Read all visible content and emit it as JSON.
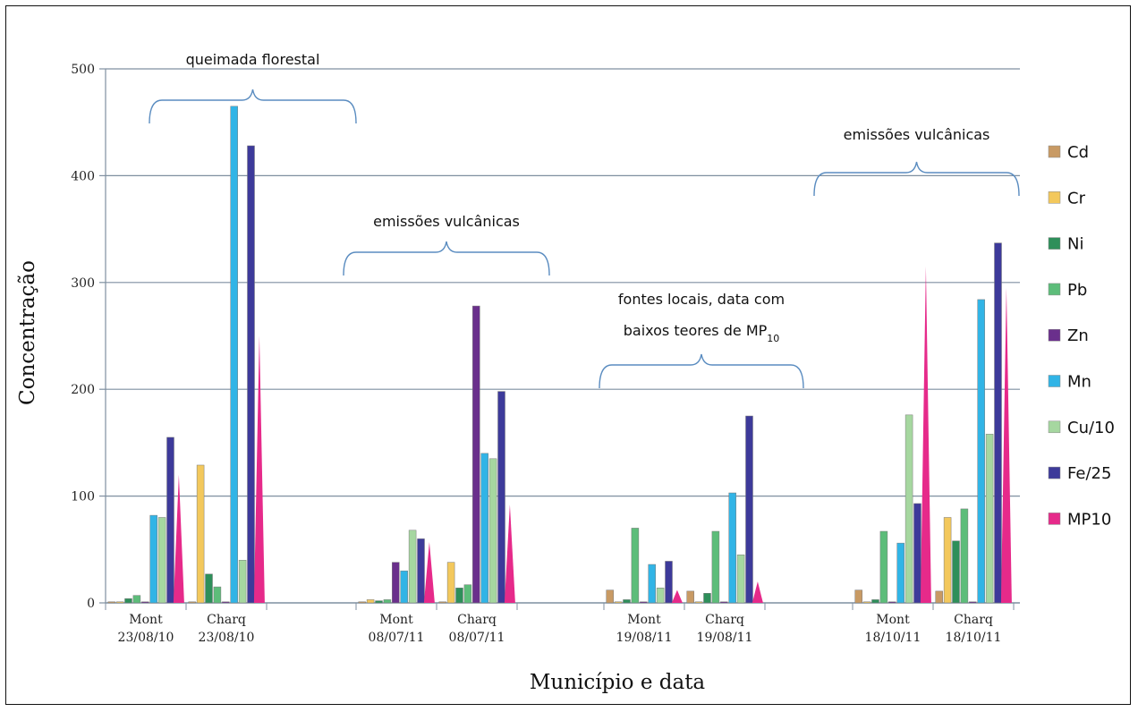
{
  "chart_data": {
    "type": "bar",
    "xlabel": "Município e data",
    "ylabel": "Concentração",
    "ylim": [
      0,
      500
    ],
    "yticks": [
      "0",
      "100",
      "200",
      "300",
      "400",
      "500"
    ],
    "grid": true,
    "legend_position": "right",
    "categories": [
      {
        "line1": "Mont",
        "line2": "23/08/10"
      },
      {
        "line1": "Charq",
        "line2": "23/08/10"
      },
      {
        "line1": "Mont",
        "line2": "08/07/11"
      },
      {
        "line1": "Charq",
        "line2": "08/07/11"
      },
      {
        "line1": "Mont",
        "line2": "19/08/11"
      },
      {
        "line1": "Charq",
        "line2": "19/08/11"
      },
      {
        "line1": "Mont",
        "line2": "18/10/11"
      },
      {
        "line1": "Charq",
        "line2": "18/10/11"
      }
    ],
    "series": [
      {
        "name": "Cd",
        "color": "#c89a64",
        "values": [
          1,
          1,
          1,
          1,
          12,
          11,
          12,
          11
        ]
      },
      {
        "name": "Cr",
        "color": "#f3c85c",
        "values": [
          1,
          129,
          3,
          38,
          1,
          1,
          1,
          80
        ]
      },
      {
        "name": "Ni",
        "color": "#2e8f5a",
        "values": [
          4,
          27,
          2,
          14,
          3,
          9,
          3,
          58
        ]
      },
      {
        "name": "Pb",
        "color": "#5dbd7a",
        "values": [
          7,
          15,
          3,
          17,
          70,
          67,
          67,
          88
        ]
      },
      {
        "name": "Zn",
        "color": "#6a2f8c",
        "values": [
          1,
          1,
          38,
          278,
          1,
          1,
          1,
          1
        ]
      },
      {
        "name": "Mn",
        "color": "#31b4e6",
        "values": [
          82,
          465,
          30,
          140,
          36,
          103,
          56,
          284
        ]
      },
      {
        "name": "Cu/10",
        "color": "#a6d7a0",
        "values": [
          80,
          40,
          68,
          135,
          14,
          45,
          176,
          158
        ]
      },
      {
        "name": "Fe/25",
        "color": "#3d3a9a",
        "values": [
          155,
          428,
          60,
          198,
          39,
          175,
          93,
          337
        ]
      },
      {
        "name": "MP10",
        "color": "#e62a8a",
        "values": [
          120,
          250,
          57,
          92,
          12,
          20,
          315,
          295
        ]
      }
    ],
    "annotations": [
      {
        "text": "queimada florestal",
        "covers": [
          0,
          1
        ]
      },
      {
        "text": "emissões vulcânicas",
        "covers": [
          2,
          3
        ]
      },
      {
        "text": "fontes locais, data com",
        "text2": "baixos teores de MP",
        "sub": "10",
        "covers": [
          4,
          5
        ]
      },
      {
        "text": "emissões vulcânicas",
        "covers": [
          6,
          7
        ]
      }
    ]
  }
}
